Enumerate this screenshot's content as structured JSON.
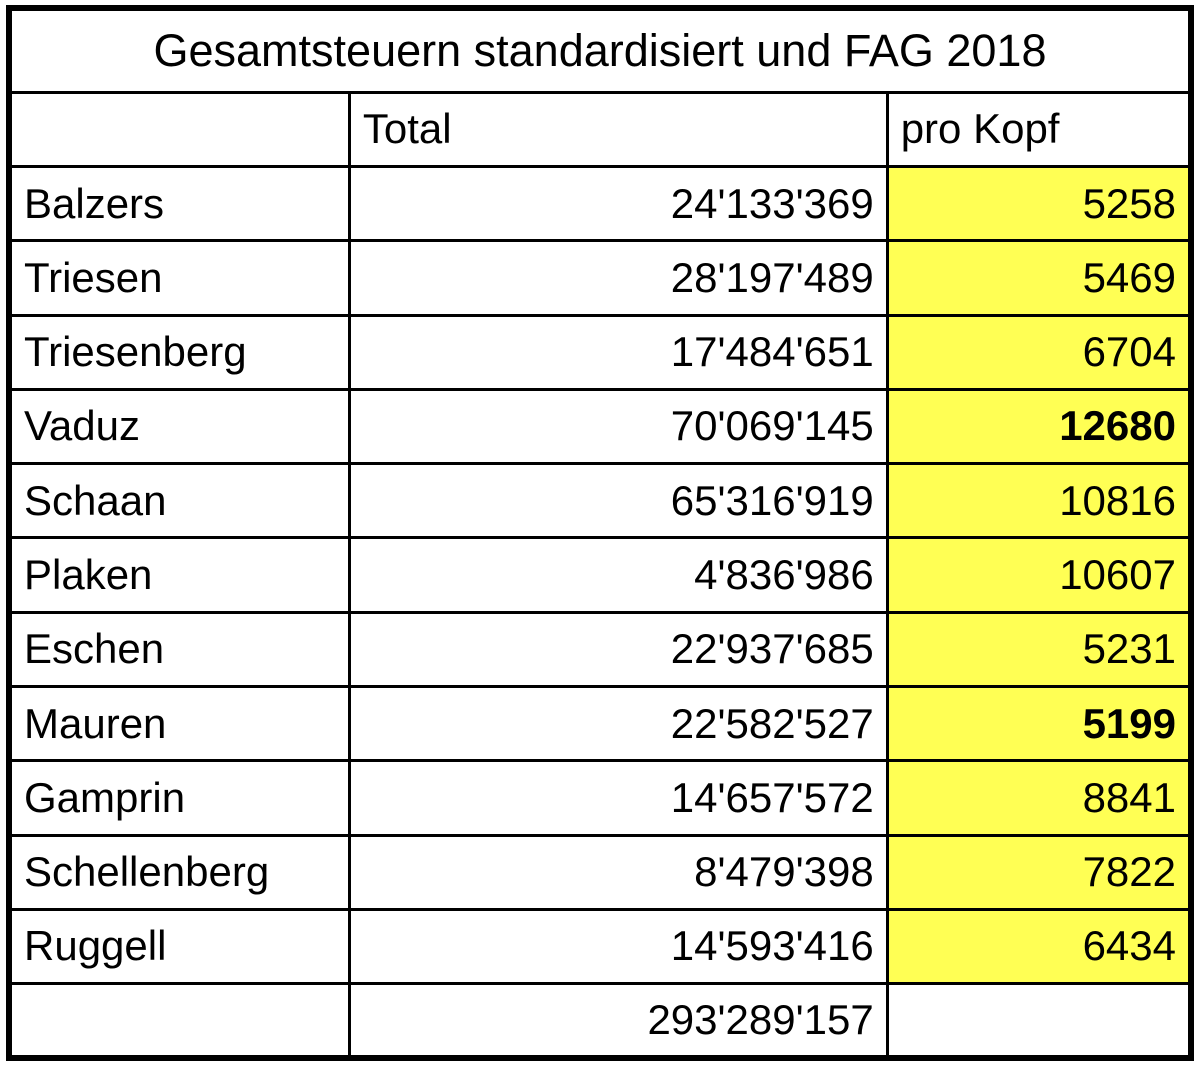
{
  "title": "Gesamtsteuern standardisiert und FAG 2018",
  "columns": {
    "name": "",
    "total": "Total",
    "pro_kopf": "pro Kopf"
  },
  "rows": [
    {
      "name": "Balzers",
      "total": "24'133'369",
      "pro_kopf": "5258",
      "bold": false
    },
    {
      "name": "Triesen",
      "total": "28'197'489",
      "pro_kopf": "5469",
      "bold": false
    },
    {
      "name": "Triesenberg",
      "total": "17'484'651",
      "pro_kopf": "6704",
      "bold": false
    },
    {
      "name": "Vaduz",
      "total": "70'069'145",
      "pro_kopf": "12680",
      "bold": true
    },
    {
      "name": "Schaan",
      "total": "65'316'919",
      "pro_kopf": "10816",
      "bold": false
    },
    {
      "name": "Plaken",
      "total": "4'836'986",
      "pro_kopf": "10607",
      "bold": false
    },
    {
      "name": "Eschen",
      "total": "22'937'685",
      "pro_kopf": "5231",
      "bold": false
    },
    {
      "name": "Mauren",
      "total": "22'582'527",
      "pro_kopf": "5199",
      "bold": true
    },
    {
      "name": "Gamprin",
      "total": "14'657'572",
      "pro_kopf": "8841",
      "bold": false
    },
    {
      "name": "Schellenberg",
      "total": "8'479'398",
      "pro_kopf": "7822",
      "bold": false
    },
    {
      "name": "Ruggell",
      "total": "14'593'416",
      "pro_kopf": "6434",
      "bold": false
    }
  ],
  "footer": {
    "name": "",
    "total": "293'289'157",
    "pro_kopf": ""
  },
  "colors": {
    "highlight": "#FFFF54",
    "border": "#000000",
    "text": "#000000",
    "background": "#FFFFFF"
  }
}
